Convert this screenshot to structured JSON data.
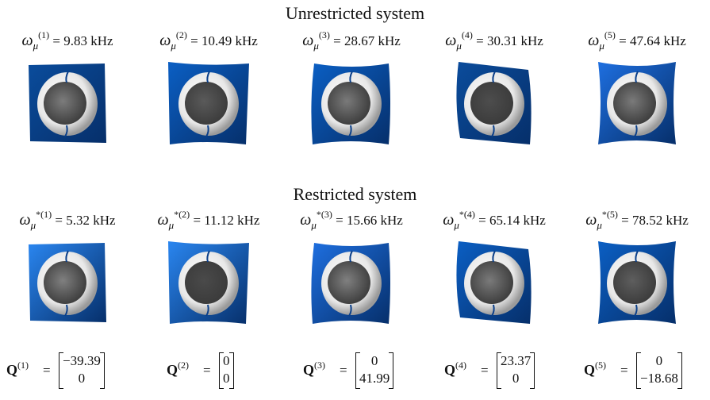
{
  "unrestricted": {
    "title": "Unrestricted system",
    "symbol": "ω",
    "subscript": "μ",
    "modes": [
      {
        "sup": "(1)",
        "value": "= 9.83 kHz",
        "plate_color": "#0a4c9c",
        "core_color": "#7c7c7c"
      },
      {
        "sup": "(2)",
        "value": "= 10.49 kHz",
        "plate_color": "#0b5fc4",
        "core_color": "#5a5a5a"
      },
      {
        "sup": "(3)",
        "value": "= 28.67 kHz",
        "plate_color": "#0b5fc4",
        "core_color": "#7a7a7a"
      },
      {
        "sup": "(4)",
        "value": "= 30.31 kHz",
        "plate_color": "#0a4c9c",
        "core_color": "#4d4d4d"
      },
      {
        "sup": "(5)",
        "value": "= 47.64 kHz",
        "plate_color": "#1e6fe0",
        "core_color": "#7a7a7a"
      }
    ]
  },
  "restricted": {
    "title": "Restricted system",
    "symbol": "ω",
    "subscript": "μ",
    "modes": [
      {
        "sup": "*(1)",
        "value": "= 5.32 kHz",
        "plate_color": "#2a86f0",
        "core_color": "#808080"
      },
      {
        "sup": "*(2)",
        "value": "= 11.12 kHz",
        "plate_color": "#2a86f0",
        "core_color": "#4a4a4a"
      },
      {
        "sup": "*(3)",
        "value": "= 15.66 kHz",
        "plate_color": "#1e6fe0",
        "core_color": "#808080"
      },
      {
        "sup": "*(4)",
        "value": "= 65.14 kHz",
        "plate_color": "#0b5fc4",
        "core_color": "#7a7a7a"
      },
      {
        "sup": "*(5)",
        "value": "= 78.52 kHz",
        "plate_color": "#0b5fc4",
        "core_color": "#5e5e5e"
      }
    ]
  },
  "q_vectors": [
    {
      "label": "Q",
      "sup": "(1)",
      "eq": "=",
      "top": "−39.39",
      "bottom": "0"
    },
    {
      "label": "Q",
      "sup": "(2)",
      "eq": "=",
      "top": "0",
      "bottom": "0"
    },
    {
      "label": "Q",
      "sup": "(3)",
      "eq": "=",
      "top": "0",
      "bottom": "41.99"
    },
    {
      "label": "Q",
      "sup": "(4)",
      "eq": "=",
      "top": "23.37",
      "bottom": "0"
    },
    {
      "label": "Q",
      "sup": "(5)",
      "eq": "=",
      "top": "0",
      "bottom": "−18.68"
    }
  ]
}
